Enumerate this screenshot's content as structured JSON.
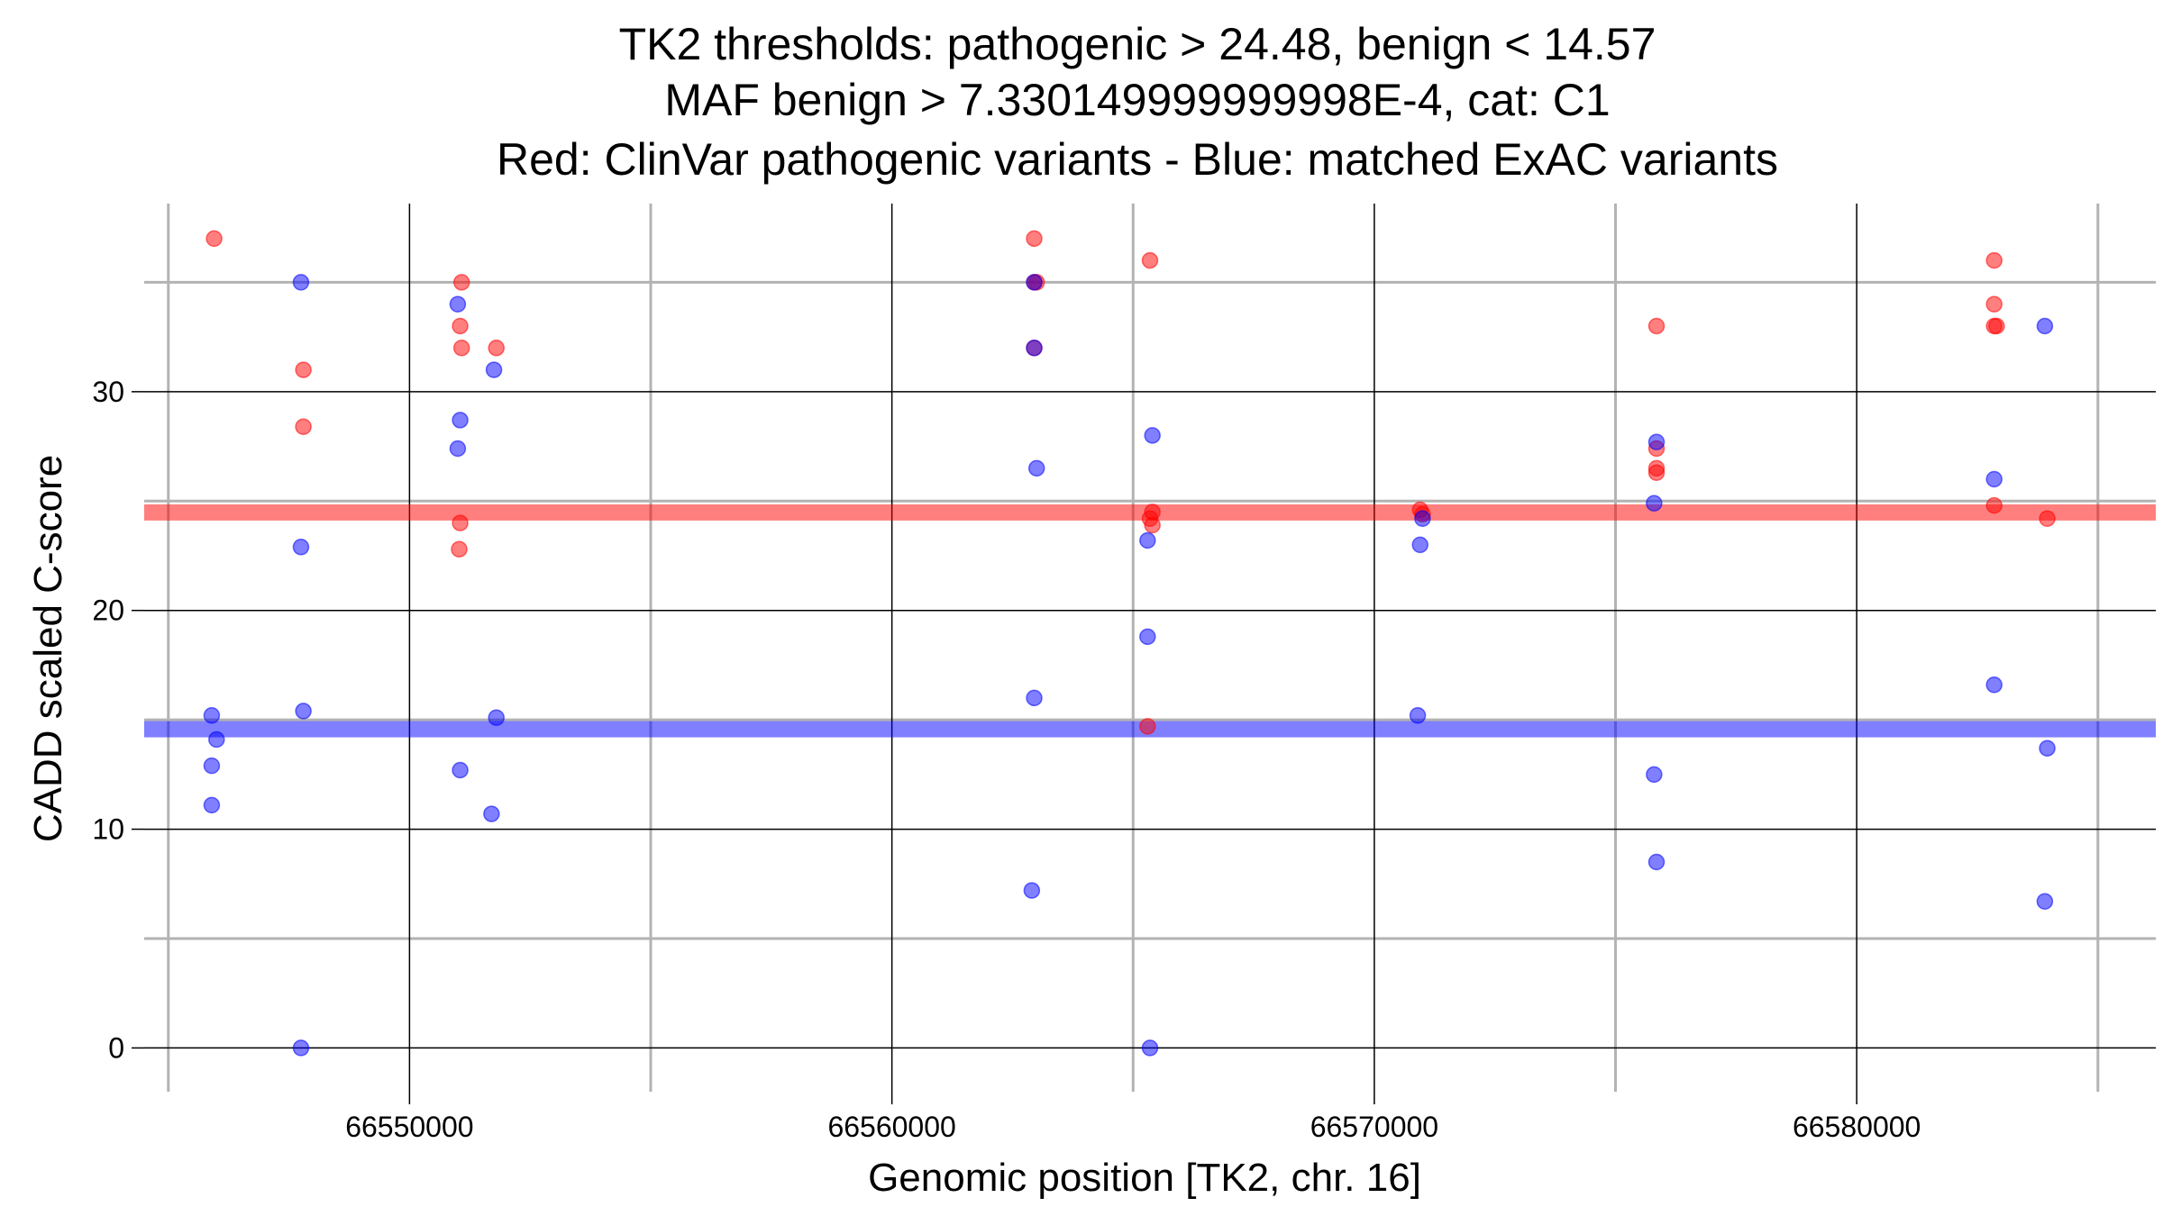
{
  "chart_data": {
    "type": "scatter",
    "title_lines": [
      "TK2 thresholds: pathogenic > 24.48, benign < 14.57",
      "MAF benign > 7.330149999999998E-4, cat: C1",
      "Red: ClinVar pathogenic variants - Blue: matched ExAC variants"
    ],
    "xlabel": "Genomic position [TK2, chr. 16]",
    "ylabel": "CADD scaled C-score",
    "xlim": [
      66544500,
      66586200
    ],
    "ylim": [
      -2,
      38.6
    ],
    "x_major_ticks": [
      66550000,
      66560000,
      66570000,
      66580000
    ],
    "x_tick_labels": [
      "66550000",
      "66560000",
      "66570000",
      "66580000"
    ],
    "x_minor_ticks": [
      66545000,
      66555000,
      66565000,
      66575000,
      66585000
    ],
    "y_major_ticks": [
      0,
      10,
      20,
      30
    ],
    "y_tick_labels": [
      "0",
      "10",
      "20",
      "30"
    ],
    "y_minor_ticks": [
      5,
      15,
      25,
      35
    ],
    "thresholds": [
      {
        "name": "pathogenic",
        "value": 24.48,
        "color": "#ff0000"
      },
      {
        "name": "benign",
        "value": 14.57,
        "color": "#0000ff"
      }
    ],
    "series": [
      {
        "name": "ClinVar pathogenic variants",
        "color": "#ff0000",
        "points": [
          [
            66545950,
            37
          ],
          [
            66547800,
            31
          ],
          [
            66547800,
            28.4
          ],
          [
            66551080,
            35
          ],
          [
            66551050,
            33
          ],
          [
            66551080,
            32
          ],
          [
            66551800,
            32
          ],
          [
            66551050,
            24
          ],
          [
            66551030,
            22.8
          ],
          [
            66562950,
            37
          ],
          [
            66562950,
            35
          ],
          [
            66563000,
            35
          ],
          [
            66562950,
            32
          ],
          [
            66565350,
            36
          ],
          [
            66565400,
            24.5
          ],
          [
            66565350,
            24.2
          ],
          [
            66565400,
            23.9
          ],
          [
            66565300,
            14.7
          ],
          [
            66570950,
            24.6
          ],
          [
            66571000,
            24.4
          ],
          [
            66575850,
            33
          ],
          [
            66575850,
            27.4
          ],
          [
            66575850,
            26.5
          ],
          [
            66575850,
            26.3
          ],
          [
            66582850,
            36
          ],
          [
            66582850,
            34
          ],
          [
            66582850,
            33
          ],
          [
            66582900,
            33
          ],
          [
            66582850,
            24.8
          ],
          [
            66583950,
            24.2
          ]
        ]
      },
      {
        "name": "matched ExAC variants",
        "color": "#0000ff",
        "points": [
          [
            66545900,
            15.2
          ],
          [
            66546000,
            14.1
          ],
          [
            66545900,
            12.9
          ],
          [
            66545900,
            11.1
          ],
          [
            66547750,
            35
          ],
          [
            66547750,
            22.9
          ],
          [
            66547800,
            15.4
          ],
          [
            66547750,
            0
          ],
          [
            66551000,
            34
          ],
          [
            66551050,
            28.7
          ],
          [
            66551000,
            27.4
          ],
          [
            66551050,
            12.7
          ],
          [
            66551750,
            31
          ],
          [
            66551800,
            15.1
          ],
          [
            66551700,
            10.7
          ],
          [
            66562950,
            35
          ],
          [
            66562950,
            32
          ],
          [
            66563000,
            26.5
          ],
          [
            66562950,
            16
          ],
          [
            66562900,
            7.2
          ],
          [
            66565400,
            28
          ],
          [
            66565300,
            23.2
          ],
          [
            66565300,
            18.8
          ],
          [
            66565350,
            0
          ],
          [
            66571000,
            24.2
          ],
          [
            66570950,
            23
          ],
          [
            66570900,
            15.2
          ],
          [
            66575850,
            27.7
          ],
          [
            66575800,
            24.9
          ],
          [
            66575800,
            12.5
          ],
          [
            66575850,
            8.5
          ],
          [
            66582850,
            26
          ],
          [
            66582850,
            16.6
          ],
          [
            66583900,
            33
          ],
          [
            66583950,
            13.7
          ],
          [
            66583900,
            6.7
          ]
        ]
      }
    ]
  }
}
